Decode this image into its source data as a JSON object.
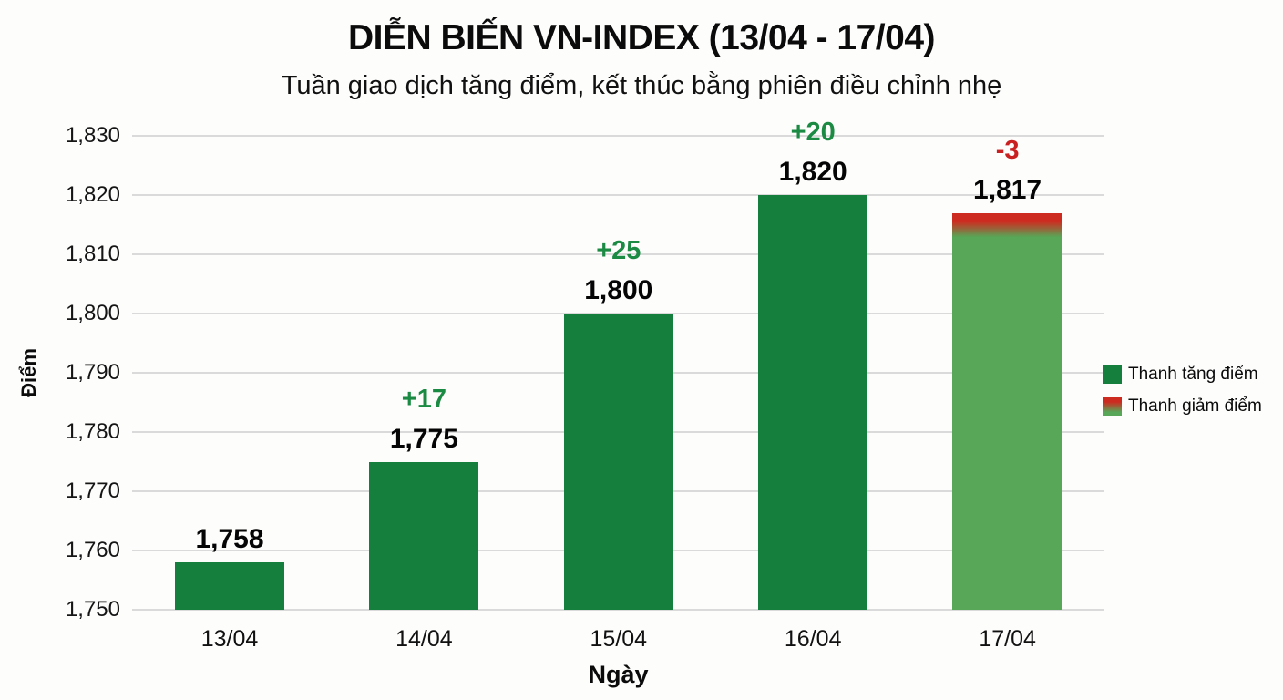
{
  "header": {
    "title": "DIỄN BIẾN VN-INDEX (13/04 - 17/04)",
    "subtitle": "Tuần giao dịch tăng điểm, kết thúc bằng phiên điều chỉnh nhẹ"
  },
  "axes": {
    "y_title": "Điểm",
    "x_title": "Ngày"
  },
  "legend": [
    {
      "label": "Thanh tăng điểm",
      "type": "up"
    },
    {
      "label": "Thanh giảm điểm",
      "type": "down"
    }
  ],
  "colors": {
    "bar_up": "#157f3e",
    "bar_down_body": "#58a657",
    "bar_down_cap": "#ce2b20",
    "change_up_text": "#1b8a43",
    "change_down_text": "#c92121",
    "gridline": "#dadada",
    "background": "#fdfdfc"
  },
  "chart_data": {
    "type": "bar",
    "title": "DIỄN BIẾN VN-INDEX (13/04 - 17/04)",
    "subtitle": "Tuần giao dịch tăng điểm, kết thúc bằng phiên điều chỉnh nhẹ",
    "xlabel": "Ngày",
    "ylabel": "Điểm",
    "categories": [
      "13/04",
      "14/04",
      "15/04",
      "16/04",
      "17/04"
    ],
    "values": [
      1758,
      1775,
      1800,
      1820,
      1817
    ],
    "value_labels": [
      "1,758",
      "1,775",
      "1,800",
      "1,820",
      "1,817"
    ],
    "changes": [
      null,
      "+17",
      "+25",
      "+20",
      "-3"
    ],
    "directions": [
      "up",
      "up",
      "up",
      "up",
      "down"
    ],
    "ylim": [
      1750,
      1830
    ],
    "ytick_step": 10,
    "yticks": [
      1750,
      1760,
      1770,
      1780,
      1790,
      1800,
      1810,
      1820,
      1830
    ],
    "ytick_labels": [
      "1,750",
      "1,760",
      "1,770",
      "1,780",
      "1,790",
      "1,800",
      "1,810",
      "1,820",
      "1,830"
    ],
    "grid": true,
    "legend_position": "right",
    "legend_entries": [
      "Thanh tăng điểm",
      "Thanh giảm điểm"
    ]
  }
}
